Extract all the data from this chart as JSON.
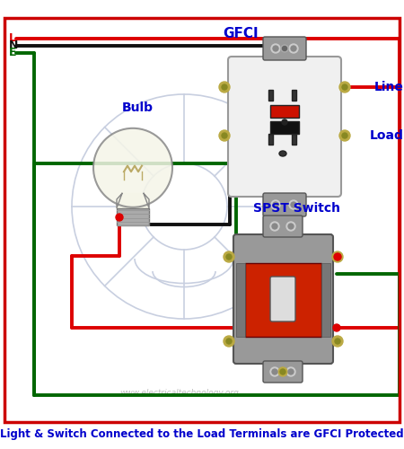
{
  "title": "Light & Switch Connected to the Load Terminals are GFCI Protected",
  "title_color": "#0000cc",
  "title_fontsize": 8.5,
  "bg_color": "#ffffff",
  "border_color": "#cc0000",
  "subtitle_text": "www.electricaltechnology.org",
  "label_gfci": "GFCI",
  "label_line": "Line",
  "label_load": "Load",
  "label_bulb": "Bulb",
  "label_switch": "SPST Switch",
  "label_L": "L",
  "label_N": "N",
  "label_E": "E",
  "wire_red": "#dd0000",
  "wire_black": "#111111",
  "wire_green": "#006600",
  "label_blue": "#0000cc",
  "gfci_body": "#f0f0f0",
  "gfci_metal": "#999999",
  "switch_red": "#cc2200",
  "switch_gray": "#888888",
  "screw_gold": "#bbaa44",
  "socket_dark": "#333333"
}
